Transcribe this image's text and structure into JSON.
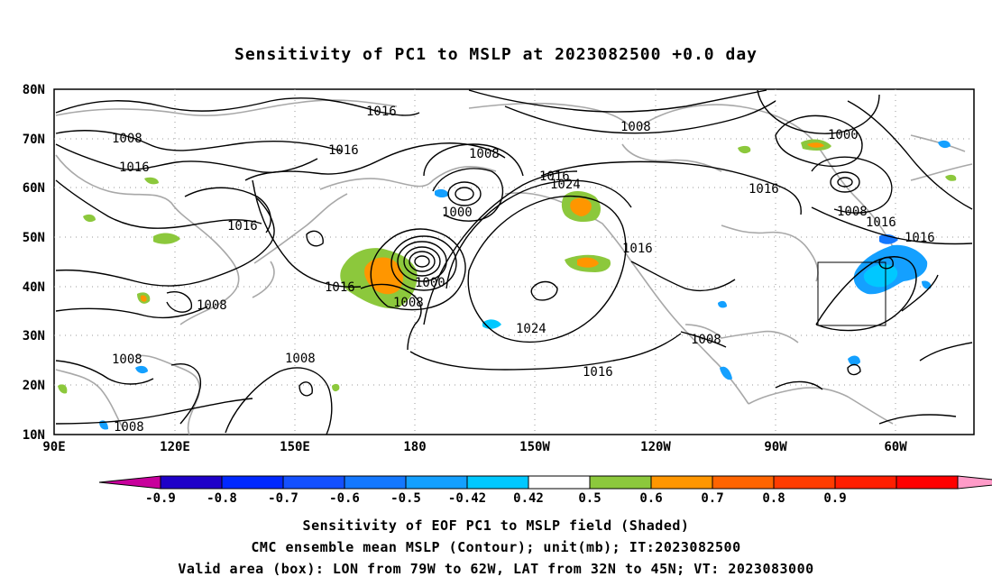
{
  "title": "Sensitivity of PC1 to MSLP at 2023082500 +0.0 day",
  "map": {
    "lat_labels": [
      "80N",
      "70N",
      "60N",
      "50N",
      "40N",
      "30N",
      "20N",
      "10N"
    ],
    "lon_labels": [
      "90E",
      "120E",
      "150E",
      "180",
      "150W",
      "120W",
      "90W",
      "60W"
    ]
  },
  "contour_labels": [
    {
      "text": "1016"
    },
    {
      "text": "1008"
    },
    {
      "text": "1016"
    },
    {
      "text": "1016"
    },
    {
      "text": "1008"
    },
    {
      "text": "1016"
    },
    {
      "text": "1024"
    },
    {
      "text": "1000"
    },
    {
      "text": "1008"
    },
    {
      "text": "1016"
    },
    {
      "text": "1000"
    },
    {
      "text": "1016"
    },
    {
      "text": "1008"
    },
    {
      "text": "1016"
    },
    {
      "text": "1016"
    },
    {
      "text": "1016"
    },
    {
      "text": "1016"
    },
    {
      "text": "1008"
    },
    {
      "text": "1000"
    },
    {
      "text": "1008"
    },
    {
      "text": "1024"
    },
    {
      "text": "1008"
    },
    {
      "text": "1016"
    },
    {
      "text": "1008"
    },
    {
      "text": "1008"
    }
  ],
  "colorbar": {
    "labels": [
      "-0.9",
      "-0.8",
      "-0.7",
      "-0.6",
      "-0.5",
      "-0.42",
      "0.42",
      "0.5",
      "0.6",
      "0.7",
      "0.8",
      "0.9"
    ],
    "colors": [
      "#c8009c",
      "#1e00c8",
      "#0028ff",
      "#1450ff",
      "#1478ff",
      "#14a0ff",
      "#00c8ff",
      "#ffffff",
      "#8cc83c",
      "#ff9600",
      "#ff6400",
      "#ff3c00",
      "#ff1e00",
      "#ff0000",
      "#ff9bc8"
    ]
  },
  "captions": {
    "line1": "Sensitivity of EOF PC1 to MSLP field (Shaded)",
    "line2": "CMC ensemble mean MSLP (Contour); unit(mb); IT:2023082500",
    "line3": "Valid area (box): LON from 79W to 62W, LAT from 32N to 45N; VT: 2023083000"
  }
}
